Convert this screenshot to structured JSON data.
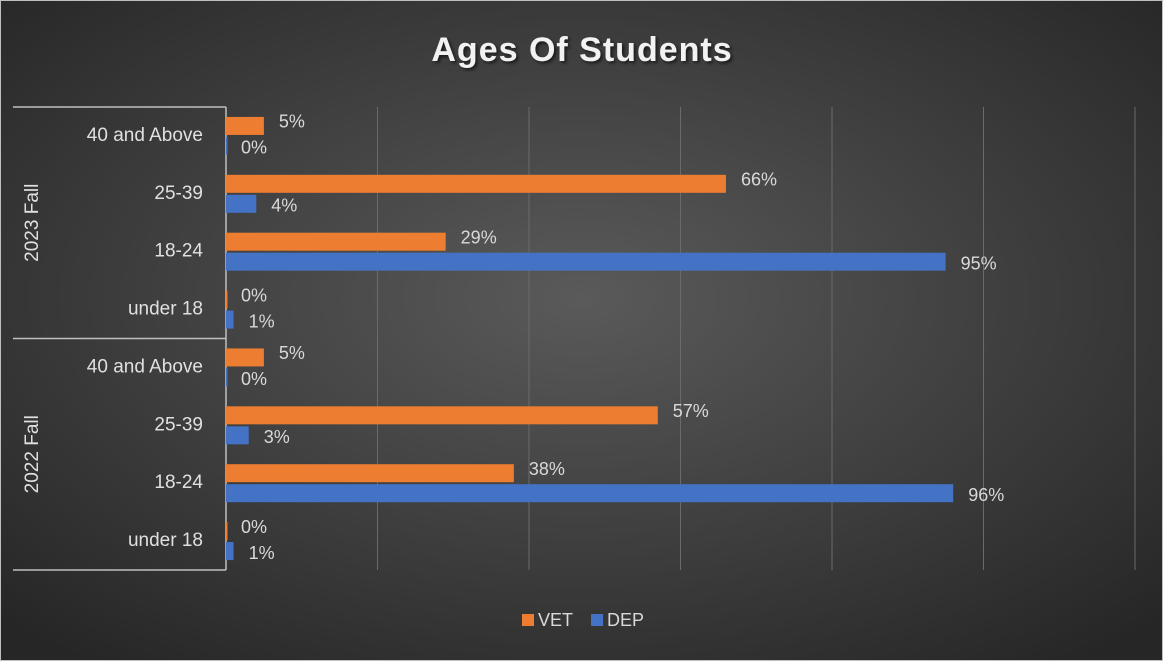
{
  "chart_data": {
    "type": "bar",
    "orientation": "horizontal",
    "title": "Ages Of Students",
    "groups": [
      {
        "name": "2023 Fall",
        "categories": [
          "40 and Above",
          "25-39",
          "18-24",
          "under 18"
        ]
      },
      {
        "name": "2022 Fall",
        "categories": [
          "40 and Above",
          "25-39",
          "18-24",
          "under 18"
        ]
      }
    ],
    "series": [
      {
        "name": "VET",
        "color": "#ed7d31",
        "values": [
          5,
          66,
          29,
          0,
          5,
          57,
          38,
          0
        ],
        "value_labels": [
          "5%",
          "66%",
          "29%",
          "0%",
          "5%",
          "57%",
          "38%",
          "0%"
        ]
      },
      {
        "name": "DEP",
        "color": "#4472c4",
        "values": [
          0,
          4,
          95,
          1,
          0,
          3,
          96,
          1
        ],
        "value_labels": [
          "0%",
          "4%",
          "95%",
          "1%",
          "0%",
          "3%",
          "96%",
          "1%"
        ]
      }
    ],
    "xlim": [
      0,
      120
    ],
    "xticks": [
      0,
      20,
      40,
      60,
      80,
      100,
      120
    ],
    "grid": true,
    "legend": "bottom"
  }
}
